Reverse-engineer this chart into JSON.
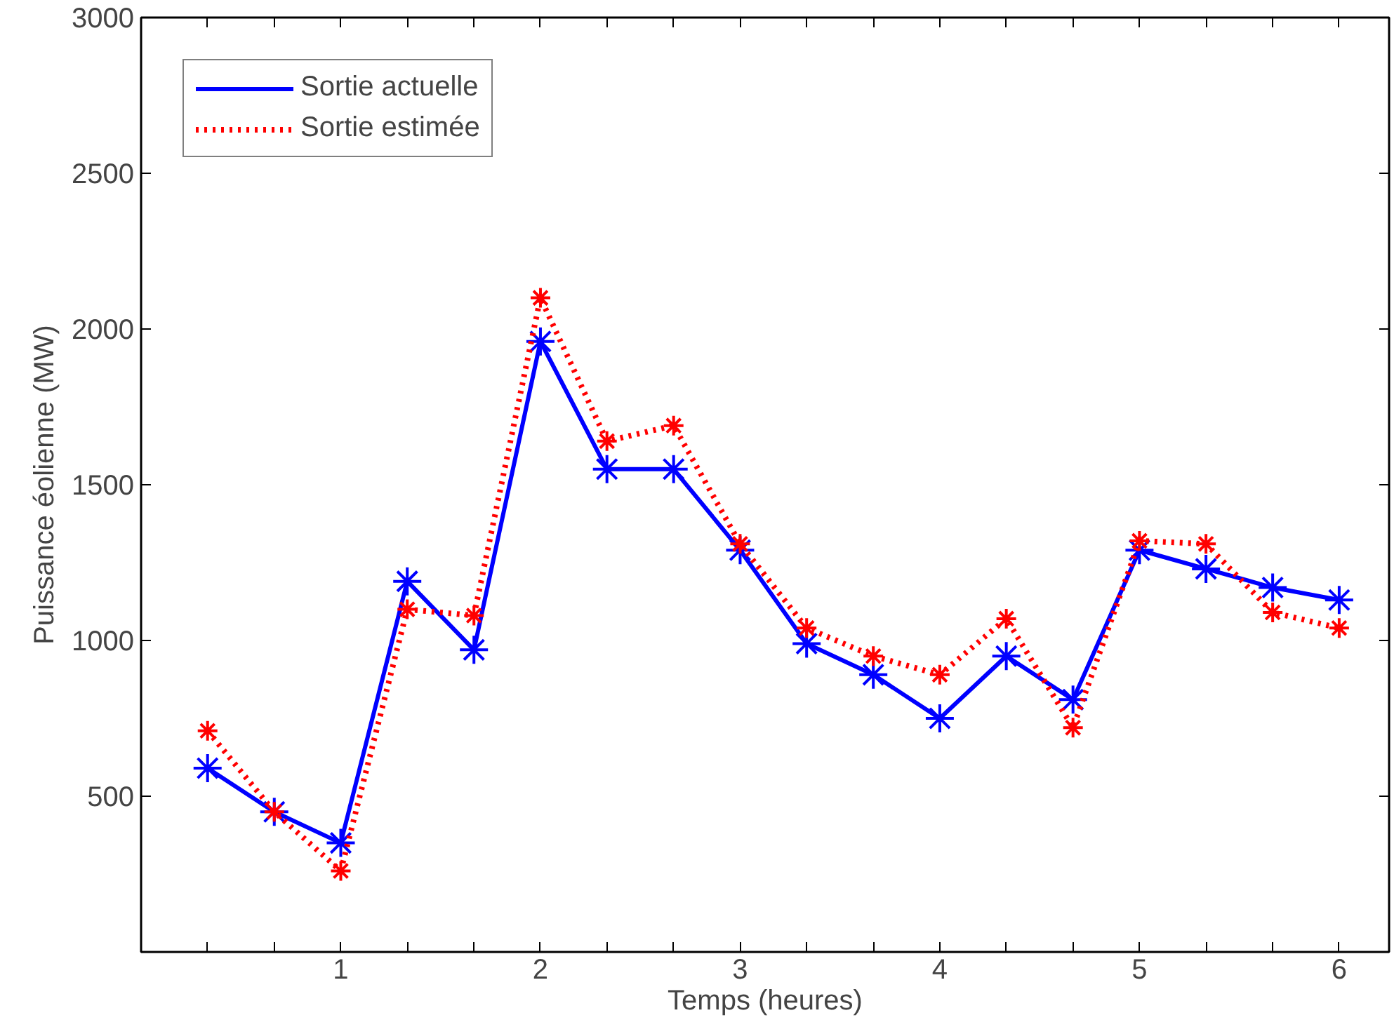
{
  "chart_data": {
    "type": "line",
    "xlabel": "Temps (heures)",
    "ylabel": "Puissance éolienne (MW)",
    "x": [
      0.333,
      0.667,
      1,
      1.333,
      1.667,
      2,
      2.333,
      2.667,
      3,
      3.333,
      3.667,
      4,
      4.333,
      4.667,
      5,
      5.333,
      5.667,
      6
    ],
    "series": [
      {
        "name": "Sortie actuelle",
        "color": "#0000ff",
        "line_style": "solid",
        "values": [
          590,
          450,
          350,
          1190,
          970,
          1960,
          1550,
          1550,
          1290,
          990,
          890,
          750,
          950,
          810,
          1290,
          1230,
          1170,
          1130
        ]
      },
      {
        "name": "Sortie estimée",
        "color": "#ff0000",
        "line_style": "dotted",
        "values": [
          710,
          450,
          260,
          1100,
          1080,
          2100,
          1640,
          1690,
          1310,
          1040,
          950,
          890,
          1070,
          720,
          1320,
          1310,
          1090,
          1040
        ]
      }
    ],
    "marker": "cross",
    "legend": "top left",
    "grid": false,
    "xlim": [
      0,
      6.25
    ],
    "ylim": [
      0,
      3000
    ],
    "xticks": [
      {
        "value": 0.333,
        "label": null
      },
      {
        "value": 0.667,
        "label": null
      },
      1,
      {
        "value": 1.333,
        "label": null
      },
      {
        "value": 1.667,
        "label": null
      },
      2,
      {
        "value": 2.333,
        "label": null
      },
      {
        "value": 2.667,
        "label": null
      },
      3,
      {
        "value": 3.333,
        "label": null
      },
      {
        "value": 3.667,
        "label": null
      },
      4,
      {
        "value": 4.333,
        "label": null
      },
      {
        "value": 4.667,
        "label": null
      },
      5,
      {
        "value": 5.333,
        "label": null
      },
      {
        "value": 5.667,
        "label": null
      },
      6
    ],
    "yticks": [
      500,
      1000,
      1500,
      2000,
      2500,
      3000
    ]
  }
}
